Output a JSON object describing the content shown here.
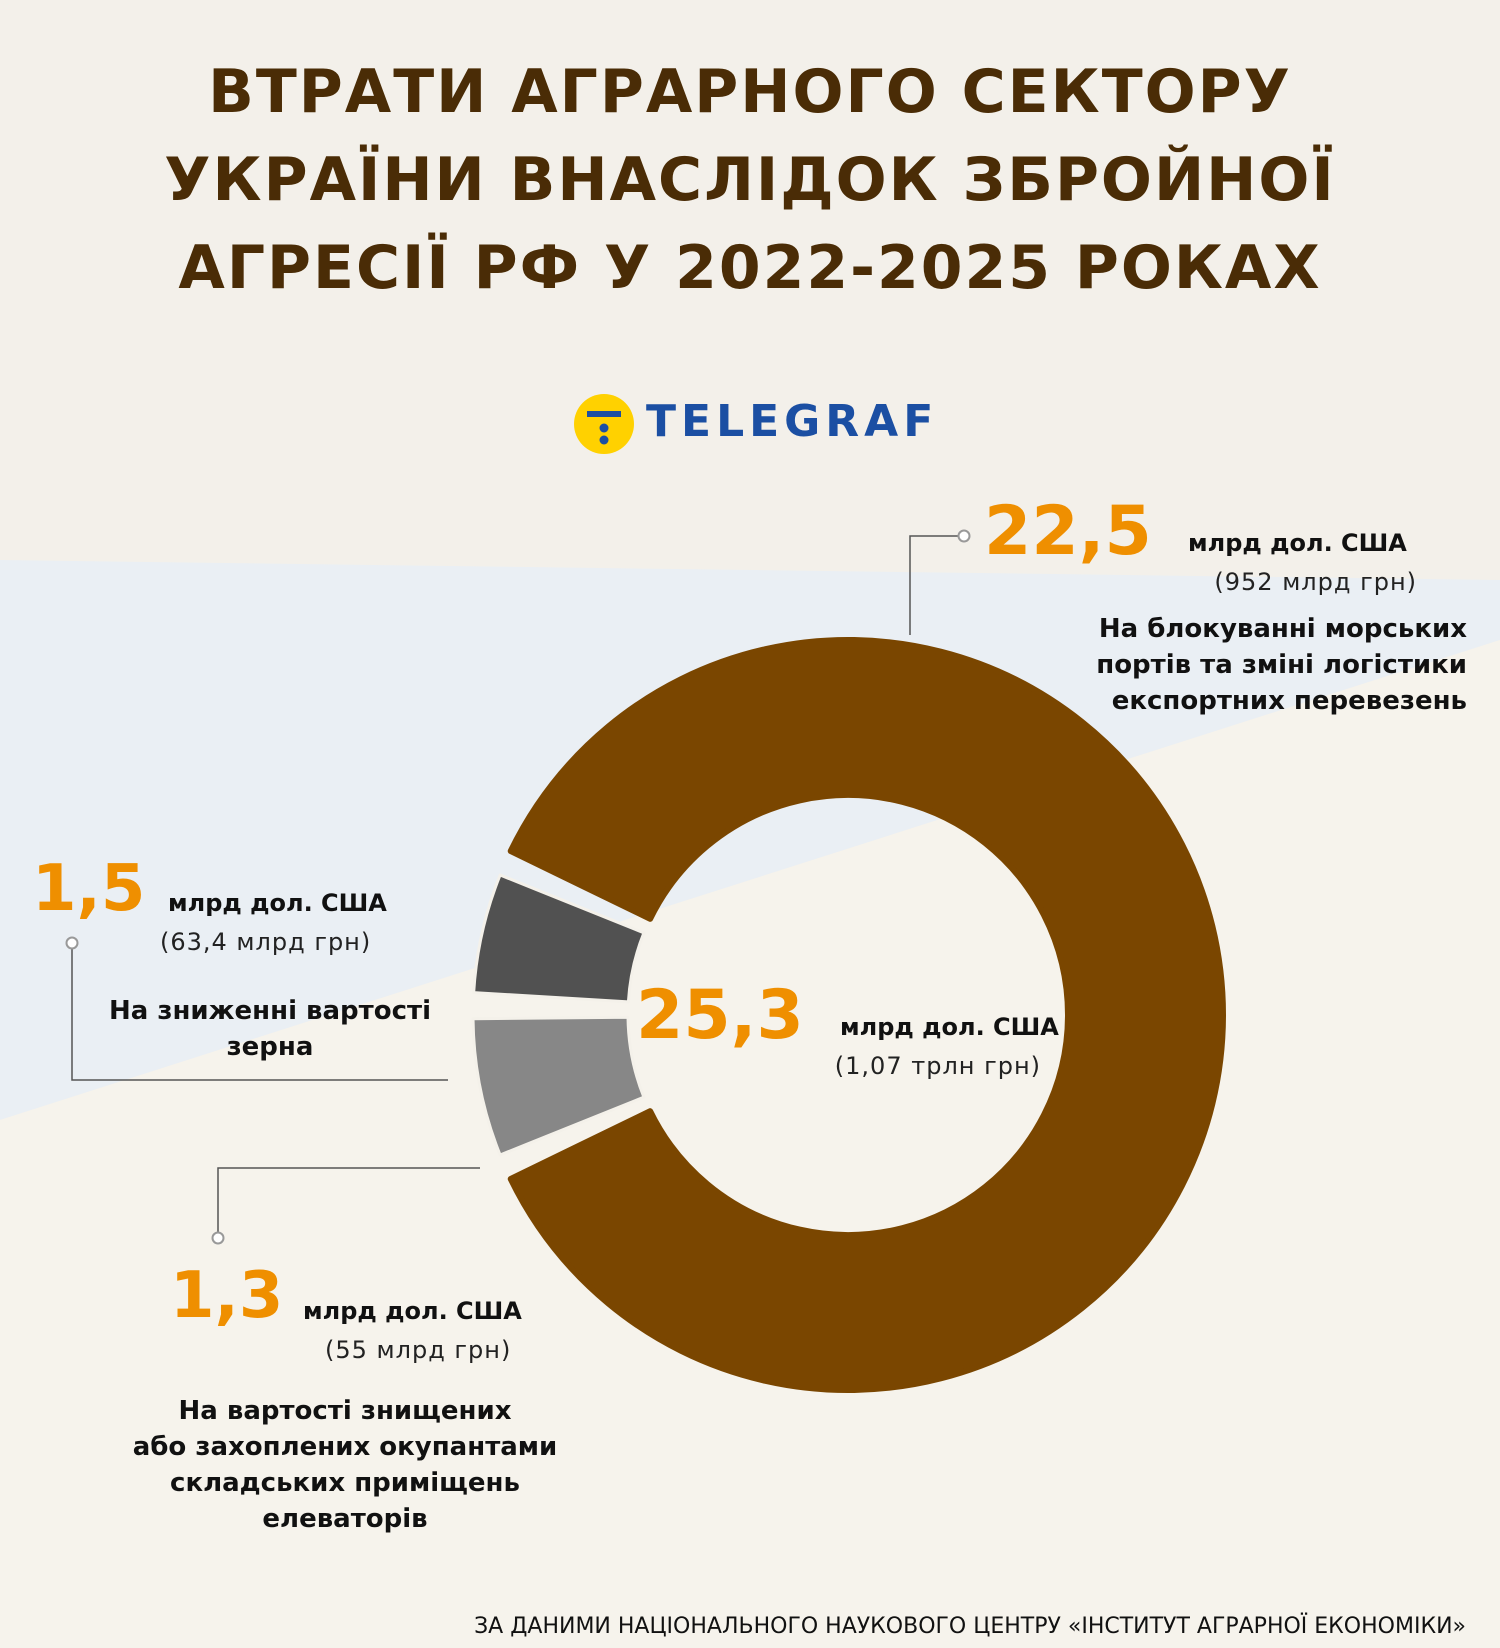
{
  "title_lines": [
    "ВТРАТИ АГРАРНОГО СЕКТОРУ",
    "УКРАЇНИ ВНАСЛІДОК ЗБРОЙНОЇ",
    "АГРЕСІЇ РФ У 2022-2025 РОКАХ"
  ],
  "logo": {
    "name": "TELEGRAF"
  },
  "colors": {
    "title": "#4a2c06",
    "accent_value": "#ef8f00",
    "logo_blue": "#1b4fa3",
    "logo_yellow": "#ffd100"
  },
  "total": {
    "value": "25,3",
    "unit": "млрд дол. США",
    "uah": "(1,07 трлн грн)"
  },
  "chart_data": {
    "type": "pie",
    "subtype": "donut",
    "unit": "млрд дол. США",
    "total": 25.3,
    "slices": [
      {
        "value_label": "22,5",
        "value": 22.5,
        "unit": "млрд дол. США",
        "uah": "(952 млрд грн)",
        "desc_lines": [
          "На блокуванні морських",
          "портів та зміні логістики",
          "експортних перевезень"
        ],
        "color": "#7a4600"
      },
      {
        "value_label": "1,5",
        "value": 1.5,
        "unit": "млрд дол. США",
        "uah": "(63,4 млрд грн)",
        "desc_lines": [
          "На зниженні вартості",
          "зерна"
        ],
        "color": "#878787"
      },
      {
        "value_label": "1,3",
        "value": 1.3,
        "unit": "млрд дол. США",
        "uah": "(55 млрд грн)",
        "desc_lines": [
          "На вартості знищених",
          "або захоплених окупантами",
          "складських приміщень",
          "елеваторів"
        ],
        "color": "#515151"
      }
    ]
  },
  "footer": "ЗА ДАНИМИ НАЦІОНАЛЬНОГО НАУКОВОГО ЦЕНТРУ «ІНСТИТУТ АГРАРНОЇ ЕКОНОМІКИ»"
}
